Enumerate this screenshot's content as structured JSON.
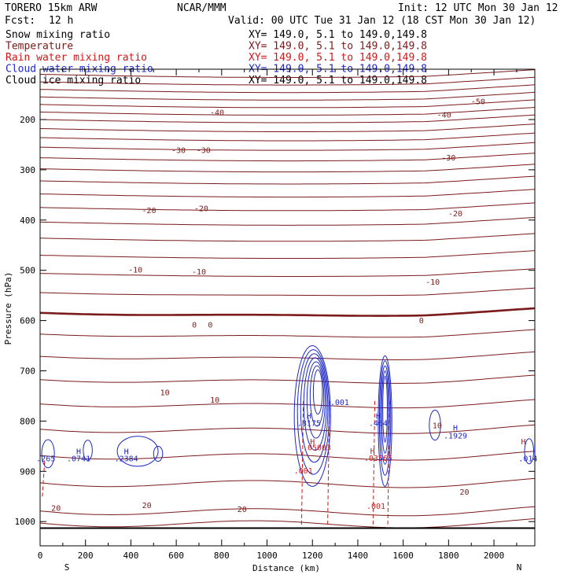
{
  "header": {
    "model": "TORERO  15km ARW",
    "center": "NCAR/MMM",
    "init": "Init: 12 UTC Mon 30 Jan 12",
    "fcst_label": "Fcst:",
    "fcst_value": "12 h",
    "valid": "Valid: 00 UTC Tue 31 Jan 12 (18 CST Mon 30 Jan 12)"
  },
  "legend": [
    {
      "label": "Snow mixing ratio",
      "color": "#000000",
      "xy": "XY= 149.0,  5.1 to 149.0,149.8"
    },
    {
      "label": "Temperature",
      "color": "#7b1a1a",
      "xy": "XY= 149.0,  5.1 to 149.0,149.8"
    },
    {
      "label": "Rain water mixing ratio",
      "color": "#d01818",
      "xy": "XY= 149.0,  5.1 to 149.0,149.8"
    },
    {
      "label": "Cloud water mixing ratio",
      "color": "#1e28c8",
      "xy": "XY= 149.0,  5.1 to 149.0,149.8"
    },
    {
      "label": "Cloud ice mixing ratio",
      "color": "#000000",
      "xy": "XY= 149.0,  5.1 to 149.0,149.8"
    }
  ],
  "colors": {
    "temperature": "#7b1a1a",
    "rain": "#d01818",
    "cloud_water": "#1e28c8",
    "axis": "#000000"
  },
  "chart_data": {
    "type": "contour",
    "xlabel": "Distance (km)",
    "ylabel": "Pressure (hPa)",
    "xlim": [
      0,
      2180
    ],
    "ylim_hpa": [
      1050,
      100
    ],
    "x_ticks": [
      0,
      200,
      400,
      600,
      800,
      1000,
      1200,
      1400,
      1600,
      1800,
      2000
    ],
    "y_ticks": [
      200,
      300,
      400,
      500,
      600,
      700,
      800,
      900,
      1000
    ],
    "endpoints": {
      "left": "S",
      "right": "N"
    },
    "temperature_labels": [
      {
        "text": "-50",
        "x": 1930,
        "p": 163
      },
      {
        "text": "-40",
        "x": 780,
        "p": 185
      },
      {
        "text": "-40",
        "x": 1780,
        "p": 190
      },
      {
        "text": "-30",
        "x": 610,
        "p": 260
      },
      {
        "text": "-30",
        "x": 720,
        "p": 260
      },
      {
        "text": "-30",
        "x": 1800,
        "p": 275
      },
      {
        "text": "-20",
        "x": 480,
        "p": 380
      },
      {
        "text": "-20",
        "x": 710,
        "p": 376
      },
      {
        "text": "-20",
        "x": 1830,
        "p": 386
      },
      {
        "text": "-10",
        "x": 420,
        "p": 498
      },
      {
        "text": "-10",
        "x": 700,
        "p": 502
      },
      {
        "text": "-10",
        "x": 1730,
        "p": 522
      },
      {
        "text": "0",
        "x": 680,
        "p": 608
      },
      {
        "text": "0",
        "x": 750,
        "p": 608
      },
      {
        "text": "0",
        "x": 1680,
        "p": 599
      },
      {
        "text": "10",
        "x": 550,
        "p": 742
      },
      {
        "text": "10",
        "x": 770,
        "p": 757
      },
      {
        "text": "10",
        "x": 1750,
        "p": 808
      },
      {
        "text": "20",
        "x": 70,
        "p": 972
      },
      {
        "text": "20",
        "x": 470,
        "p": 967
      },
      {
        "text": "20",
        "x": 890,
        "p": 975
      },
      {
        "text": "20",
        "x": 1870,
        "p": 940
      }
    ],
    "cloud_water_labels": [
      {
        "text": "H",
        "x": 170,
        "p": 860
      },
      {
        "text": ".0741",
        "x": 170,
        "p": 874
      },
      {
        "text": "H",
        "x": 380,
        "p": 860
      },
      {
        "text": ".2384",
        "x": 380,
        "p": 874
      },
      {
        "text": ".265",
        "x": 25,
        "p": 874
      },
      {
        "text": ".001",
        "x": 1320,
        "p": 762
      },
      {
        "text": "H",
        "x": 1185,
        "p": 789
      },
      {
        "text": ".8175",
        "x": 1185,
        "p": 803
      },
      {
        "text": "H",
        "x": 1490,
        "p": 789
      },
      {
        "text": ".464",
        "x": 1490,
        "p": 803
      },
      {
        "text": "H",
        "x": 1830,
        "p": 813
      },
      {
        "text": ".1929",
        "x": 1830,
        "p": 828
      },
      {
        "text": ".014",
        "x": 2150,
        "p": 874
      }
    ],
    "rain_labels": [
      {
        "text": "H",
        "x": 1200,
        "p": 840
      },
      {
        "text": ".05003",
        "x": 1220,
        "p": 852
      },
      {
        "text": ".001",
        "x": 1160,
        "p": 898
      },
      {
        "text": "H",
        "x": 1465,
        "p": 859
      },
      {
        "text": ".03565",
        "x": 1490,
        "p": 873
      },
      {
        "text": ".001",
        "x": 1480,
        "p": 968
      },
      {
        "text": "H",
        "x": 2130,
        "p": 840
      }
    ],
    "temperature_isotherm_pressures": [
      110,
      125,
      140,
      155,
      170,
      185,
      200,
      218,
      236,
      255,
      276,
      298,
      322,
      348,
      375,
      404,
      436,
      470,
      506,
      544,
      584,
      626,
      670,
      716,
      764,
      814,
      866,
      920,
      976,
      1000
    ]
  }
}
